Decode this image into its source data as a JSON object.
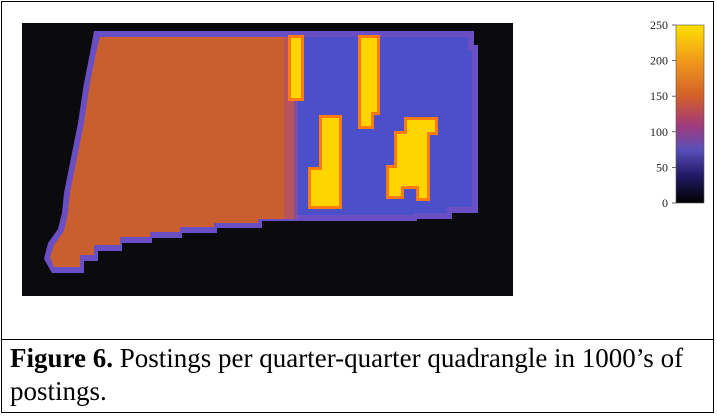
{
  "figure": {
    "caption_label": "Figure 6.",
    "caption_text": " Postings per quarter-quarter quadrangle in 1000’s of postings."
  },
  "chart_data": {
    "type": "heatmap",
    "title": "",
    "xlabel": "",
    "ylabel": "",
    "colorbar": {
      "range": [
        0,
        250
      ],
      "ticks": [
        0,
        50,
        100,
        150,
        200,
        250
      ],
      "tick_labels": [
        "0",
        "50",
        "100",
        "150",
        "200",
        "250"
      ],
      "stops": [
        {
          "value": 0,
          "color": "#000000"
        },
        {
          "value": 40,
          "color": "#241a6a"
        },
        {
          "value": 75,
          "color": "#5a4fb8"
        },
        {
          "value": 110,
          "color": "#a23a7a"
        },
        {
          "value": 150,
          "color": "#d2602a"
        },
        {
          "value": 200,
          "color": "#f09a1a"
        },
        {
          "value": 250,
          "color": "#ffe000"
        }
      ]
    },
    "regions": [
      {
        "name": "western",
        "value": 140,
        "color": "#c95f2e"
      },
      {
        "name": "eastern",
        "value": 70,
        "color": "#4c50c8"
      },
      {
        "name": "border",
        "value": 90,
        "color": "#7050c0"
      },
      {
        "name": "hotspots",
        "value": 250,
        "color": "#ffd400"
      },
      {
        "name": "background",
        "value": 0,
        "color": "#0b0b0d"
      }
    ]
  }
}
